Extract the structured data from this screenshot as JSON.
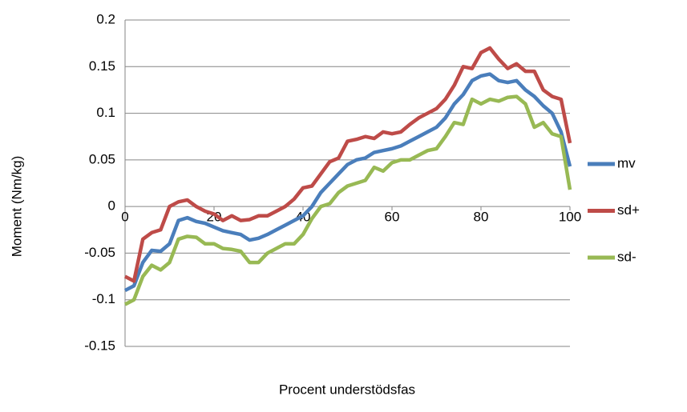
{
  "chart_data": {
    "type": "line",
    "y_label": "Moment (Nm/kg)",
    "x_label": "Procent understödsfas",
    "x": [
      0,
      2,
      4,
      6,
      8,
      10,
      12,
      14,
      16,
      18,
      20,
      22,
      24,
      26,
      28,
      30,
      32,
      34,
      36,
      38,
      40,
      42,
      44,
      46,
      48,
      50,
      52,
      54,
      56,
      58,
      60,
      62,
      64,
      66,
      68,
      70,
      72,
      74,
      76,
      78,
      80,
      82,
      84,
      86,
      88,
      90,
      92,
      94,
      96,
      98,
      100
    ],
    "series": [
      {
        "name": "mv",
        "color": "#4a7ebb",
        "values": [
          -0.09,
          -0.085,
          -0.06,
          -0.047,
          -0.048,
          -0.04,
          -0.015,
          -0.012,
          -0.016,
          -0.018,
          -0.022,
          -0.026,
          -0.028,
          -0.03,
          -0.036,
          -0.034,
          -0.03,
          -0.025,
          -0.02,
          -0.015,
          -0.01,
          0.0,
          0.015,
          0.025,
          0.035,
          0.045,
          0.05,
          0.052,
          0.058,
          0.06,
          0.062,
          0.065,
          0.07,
          0.075,
          0.08,
          0.085,
          0.095,
          0.11,
          0.12,
          0.135,
          0.14,
          0.142,
          0.135,
          0.133,
          0.135,
          0.125,
          0.118,
          0.108,
          0.1,
          0.08,
          0.043
        ]
      },
      {
        "name": "sd+",
        "color": "#be4b48",
        "values": [
          -0.075,
          -0.08,
          -0.035,
          -0.028,
          -0.025,
          0.0,
          0.005,
          0.007,
          0.0,
          -0.005,
          -0.008,
          -0.015,
          -0.01,
          -0.015,
          -0.014,
          -0.01,
          -0.01,
          -0.005,
          0.0,
          0.008,
          0.02,
          0.022,
          0.035,
          0.048,
          0.052,
          0.07,
          0.072,
          0.075,
          0.073,
          0.08,
          0.078,
          0.08,
          0.088,
          0.095,
          0.1,
          0.105,
          0.115,
          0.13,
          0.15,
          0.148,
          0.165,
          0.17,
          0.158,
          0.148,
          0.153,
          0.145,
          0.145,
          0.125,
          0.118,
          0.115,
          0.068
        ]
      },
      {
        "name": "sd-",
        "color": "#98b954",
        "values": [
          -0.105,
          -0.1,
          -0.075,
          -0.063,
          -0.068,
          -0.06,
          -0.035,
          -0.032,
          -0.033,
          -0.04,
          -0.04,
          -0.045,
          -0.046,
          -0.048,
          -0.06,
          -0.06,
          -0.05,
          -0.045,
          -0.04,
          -0.04,
          -0.03,
          -0.013,
          0.0,
          0.003,
          0.015,
          0.022,
          0.025,
          0.028,
          0.042,
          0.038,
          0.047,
          0.05,
          0.05,
          0.055,
          0.06,
          0.062,
          0.075,
          0.09,
          0.088,
          0.115,
          0.11,
          0.115,
          0.113,
          0.117,
          0.118,
          0.11,
          0.085,
          0.09,
          0.078,
          0.075,
          0.018
        ]
      }
    ],
    "xlim": [
      0,
      100
    ],
    "xticks": [
      0,
      20,
      40,
      60,
      80,
      100
    ],
    "ylim": [
      -0.15,
      0.2
    ],
    "yticks": [
      -0.15,
      -0.1,
      -0.05,
      0,
      0.05,
      0.1,
      0.15,
      0.2
    ],
    "grid": true,
    "legend": "right"
  }
}
